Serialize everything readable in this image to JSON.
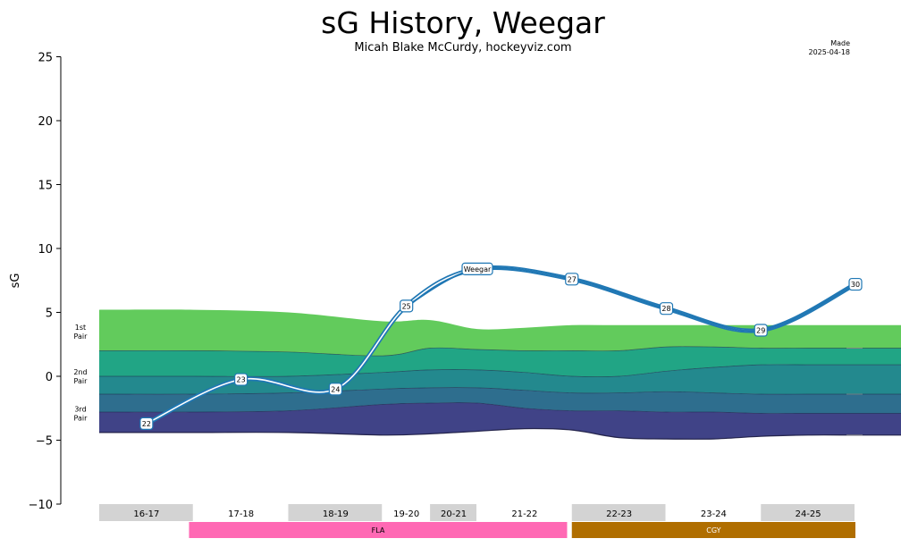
{
  "chart_data": {
    "type": "area",
    "title": "sG History, Weegar",
    "subtitle": "Micah Blake McCurdy, hockeyviz.com",
    "made_label": "Made",
    "made_date": "2025-04-18",
    "ylabel": "sG",
    "ylim": [
      -10,
      25
    ],
    "yticks": [
      -10,
      -5,
      0,
      5,
      10,
      15,
      20,
      25
    ],
    "player": {
      "name": "Weegar",
      "points": [
        {
          "label": "22",
          "x": 0.0,
          "y": -3.7
        },
        {
          "label": "23",
          "x": 1.0,
          "y": -0.25
        },
        {
          "label": "24",
          "x": 2.0,
          "y": -1.0
        },
        {
          "label": "25",
          "x": 2.75,
          "y": 5.5
        },
        {
          "label": "Weegar",
          "x": 3.5,
          "y": 8.4
        },
        {
          "label": "27",
          "x": 4.5,
          "y": 7.6
        },
        {
          "label": "28",
          "x": 5.5,
          "y": 5.3
        },
        {
          "label": "29",
          "x": 6.5,
          "y": 3.6
        },
        {
          "label": "30",
          "x": 7.5,
          "y": 7.2
        }
      ]
    },
    "bands": {
      "x": [
        -0.5,
        0.5,
        1.5,
        2.5,
        3.0,
        3.5,
        4.0,
        4.5,
        5.0,
        5.5,
        6.0,
        6.5,
        7.0,
        7.5,
        8.0
      ],
      "boundaries": [
        [
          5.2,
          5.2,
          5.0,
          4.3,
          4.4,
          3.7,
          3.8,
          4.0,
          4.0,
          4.0,
          4.0,
          4.0,
          4.0,
          4.0,
          4.0
        ],
        [
          2.0,
          2.0,
          1.9,
          1.6,
          2.2,
          2.1,
          2.0,
          2.0,
          2.0,
          2.3,
          2.3,
          2.2,
          2.2,
          2.2,
          2.2
        ],
        [
          0.0,
          0.0,
          0.0,
          0.3,
          0.5,
          0.5,
          0.3,
          0.0,
          0.0,
          0.4,
          0.7,
          0.9,
          0.9,
          0.9,
          0.9
        ],
        [
          -1.4,
          -1.4,
          -1.3,
          -1.0,
          -0.9,
          -0.9,
          -1.1,
          -1.3,
          -1.3,
          -1.2,
          -1.3,
          -1.4,
          -1.4,
          -1.4,
          -1.4
        ],
        [
          -2.8,
          -2.8,
          -2.7,
          -2.2,
          -2.1,
          -2.1,
          -2.5,
          -2.7,
          -2.7,
          -2.8,
          -2.8,
          -2.9,
          -2.9,
          -2.9,
          -2.9
        ],
        [
          -4.4,
          -4.4,
          -4.4,
          -4.6,
          -4.5,
          -4.3,
          -4.1,
          -4.2,
          -4.8,
          -4.9,
          -4.9,
          -4.7,
          -4.6,
          -4.6,
          -4.6
        ]
      ],
      "colors": [
        "#62cb5c",
        "#21a585",
        "#23898e",
        "#2e6e8e",
        "#404387"
      ],
      "pair_labels": [
        {
          "line1": "1st",
          "line2": "Pair",
          "y": 3.5
        },
        {
          "line1": "2nd",
          "line2": "Pair",
          "y": 0.0
        },
        {
          "line1": "3rd",
          "line2": "Pair",
          "y": -2.9
        }
      ],
      "ref_lines": [
        2.2,
        -1.4,
        -4.6
      ]
    },
    "seasons": [
      {
        "label": "16-17",
        "start": -0.5,
        "end": 0.5
      },
      {
        "label": "17-18",
        "start": 0.5,
        "end": 1.5
      },
      {
        "label": "18-19",
        "start": 1.5,
        "end": 2.5
      },
      {
        "label": "19-20",
        "start": 2.5,
        "end": 3.0
      },
      {
        "label": "20-21",
        "start": 3.0,
        "end": 3.5
      },
      {
        "label": "21-22",
        "start": 3.5,
        "end": 4.5
      },
      {
        "label": "22-23",
        "start": 4.5,
        "end": 5.5
      },
      {
        "label": "23-24",
        "start": 5.5,
        "end": 6.5
      },
      {
        "label": "24-25",
        "start": 6.5,
        "end": 7.5
      }
    ],
    "teams": [
      {
        "label": "FLA",
        "start": 0.45,
        "end": 4.45,
        "color": "#ff69b4"
      },
      {
        "label": "CGY",
        "start": 4.5,
        "end": 7.5,
        "color": "#b06e00"
      }
    ],
    "colors": {
      "line": "#1f77b4",
      "season_shade": "#d3d3d3",
      "band_edge": "#1a1a40",
      "ref_line": "#888888"
    }
  }
}
